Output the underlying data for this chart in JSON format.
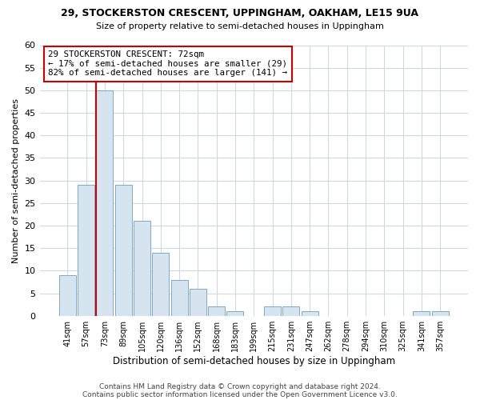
{
  "title_line1": "29, STOCKERSTON CRESCENT, UPPINGHAM, OAKHAM, LE15 9UA",
  "title_line2": "Size of property relative to semi-detached houses in Uppingham",
  "xlabel": "Distribution of semi-detached houses by size in Uppingham",
  "ylabel": "Number of semi-detached properties",
  "bin_labels": [
    "41sqm",
    "57sqm",
    "73sqm",
    "89sqm",
    "105sqm",
    "120sqm",
    "136sqm",
    "152sqm",
    "168sqm",
    "183sqm",
    "199sqm",
    "215sqm",
    "231sqm",
    "247sqm",
    "262sqm",
    "278sqm",
    "294sqm",
    "310sqm",
    "325sqm",
    "341sqm",
    "357sqm"
  ],
  "bar_heights": [
    9,
    29,
    50,
    29,
    21,
    14,
    8,
    6,
    2,
    1,
    0,
    2,
    2,
    1,
    0,
    0,
    0,
    0,
    0,
    1,
    1
  ],
  "bar_color": "#d6e4f0",
  "bar_edgecolor": "#6a9fc0",
  "property_line_bin": 2,
  "annotation_title": "29 STOCKERSTON CRESCENT: 72sqm",
  "annotation_line2": "← 17% of semi-detached houses are smaller (29)",
  "annotation_line3": "82% of semi-detached houses are larger (141) →",
  "annotation_box_color": "#ffffff",
  "annotation_box_edgecolor": "#cc0000",
  "vline_color": "#cc0000",
  "ylim": [
    0,
    60
  ],
  "yticks": [
    0,
    5,
    10,
    15,
    20,
    25,
    30,
    35,
    40,
    45,
    50,
    55,
    60
  ],
  "footer_line1": "Contains HM Land Registry data © Crown copyright and database right 2024.",
  "footer_line2": "Contains public sector information licensed under the Open Government Licence v3.0.",
  "bg_color": "#ffffff",
  "plot_bg_color": "#ffffff",
  "grid_color": "#d0d8e0"
}
